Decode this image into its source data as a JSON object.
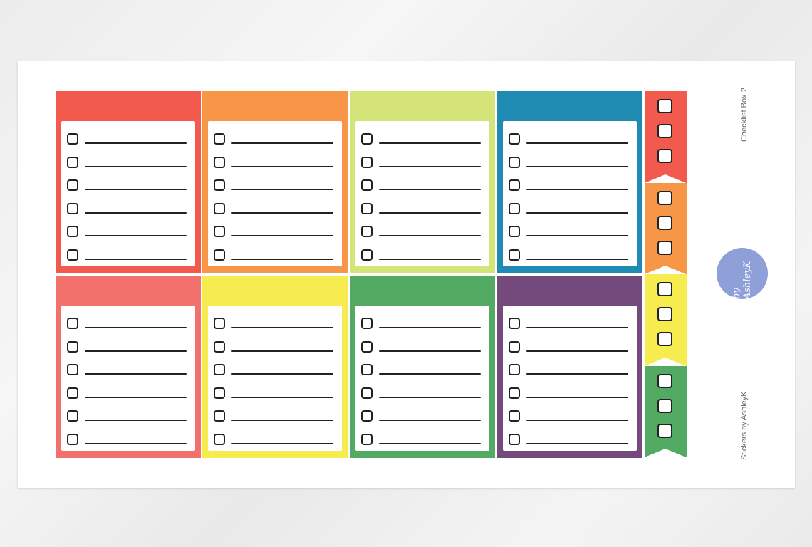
{
  "sheet": {
    "title": "Checklist Box 2",
    "brand": "Stickers by AshleyK",
    "logo_text": "by AshleyK",
    "logo_color": "#8fa0d8"
  },
  "checklist_boxes": [
    {
      "color": "#f25a4e",
      "checkboxes": 6
    },
    {
      "color": "#f79646",
      "checkboxes": 6
    },
    {
      "color": "#d5e479",
      "checkboxes": 6
    },
    {
      "color": "#1f8bb3",
      "checkboxes": 6
    },
    {
      "color": "#f2716c",
      "checkboxes": 6
    },
    {
      "color": "#f7ec4f",
      "checkboxes": 6
    },
    {
      "color": "#53aa62",
      "checkboxes": 6
    },
    {
      "color": "#744a7c",
      "checkboxes": 6
    }
  ],
  "flag_segments": [
    {
      "color": "#f25a4e",
      "checkboxes": 3
    },
    {
      "color": "#f79646",
      "checkboxes": 3
    },
    {
      "color": "#f7ec4f",
      "checkboxes": 3
    },
    {
      "color": "#53aa62",
      "checkboxes": 3
    }
  ]
}
